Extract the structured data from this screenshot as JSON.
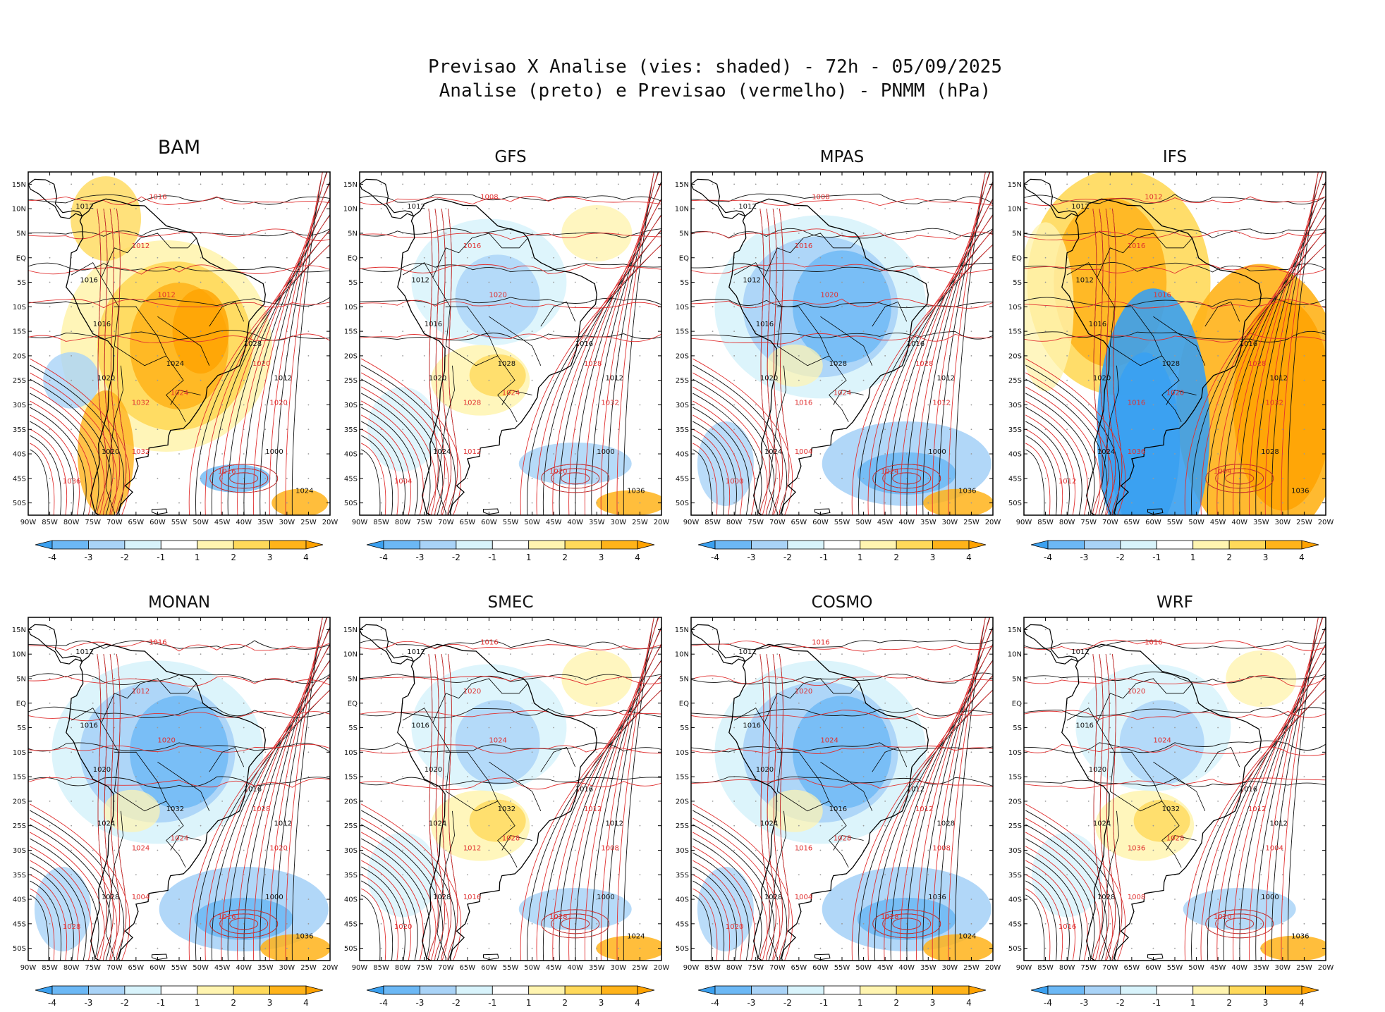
{
  "title": {
    "line1": "Previsao X Analise (vies: shaded) - 72h - 05/09/2025",
    "line2": "Analise (preto) e Previsao (vermelho) - PNMM (hPa)"
  },
  "lat_ticks": [
    "15N",
    "10N",
    "5N",
    "EQ",
    "5S",
    "10S",
    "15S",
    "20S",
    "25S",
    "30S",
    "35S",
    "40S",
    "45S",
    "50S"
  ],
  "lon_ticks": [
    "90W",
    "85W",
    "80W",
    "75W",
    "70W",
    "65W",
    "60W",
    "55W",
    "50W",
    "45W",
    "40W",
    "35W",
    "30W",
    "25W",
    "20W"
  ],
  "colorbar": {
    "labels": [
      "-4",
      "-3",
      "-2",
      "-1",
      "1",
      "2",
      "3",
      "4"
    ],
    "colors": [
      "#3aa0f0",
      "#6cb8f5",
      "#a9d3f7",
      "#d8f3fb",
      "#ffffff",
      "#fff4b0",
      "#ffd95a",
      "#ffb31a",
      "#ffa200"
    ]
  },
  "colors": {
    "analysis_isobar": "#111111",
    "forecast_isobar": "#e03030",
    "grid_dot": "#999999",
    "neg_bias": "#4aa8f2",
    "pos_bias": "#ffb020"
  },
  "panels": [
    {
      "name": "BAM",
      "bias": "pos",
      "labels_black": [
        "1012",
        "1016",
        "1016",
        "1020",
        "1020",
        "1024",
        "1028",
        "1012",
        "1000",
        "1024"
      ],
      "labels_red": [
        "1016",
        "1012",
        "1012",
        "1024",
        "1020",
        "1020",
        "1032",
        "1036",
        "1016",
        "1032"
      ]
    },
    {
      "name": "GFS",
      "bias": "mixed",
      "labels_black": [
        "1012",
        "1012",
        "1016",
        "1020",
        "1024",
        "1028",
        "1016",
        "1012",
        "1000",
        "1036"
      ],
      "labels_red": [
        "1008",
        "1016",
        "1020",
        "1024",
        "1028",
        "1032",
        "1012",
        "1004",
        "1020",
        "1028"
      ]
    },
    {
      "name": "MPAS",
      "bias": "neg",
      "labels_black": [
        "1012",
        "1012",
        "1016",
        "1020",
        "1024",
        "1028",
        "1016",
        "1012",
        "1000",
        "1036"
      ],
      "labels_red": [
        "1008",
        "1016",
        "1020",
        "1024",
        "1028",
        "1012",
        "1004",
        "1000",
        "1024",
        "1016"
      ]
    },
    {
      "name": "IFS",
      "bias": "split",
      "labels_black": [
        "1012",
        "1012",
        "1016",
        "1020",
        "1024",
        "1028",
        "1016",
        "1012",
        "1028",
        "1036"
      ],
      "labels_red": [
        "1012",
        "1016",
        "1016",
        "1020",
        "1028",
        "1032",
        "1036",
        "1012",
        "1004",
        "1016"
      ]
    },
    {
      "name": "MONAN",
      "bias": "neg",
      "labels_black": [
        "1012",
        "1016",
        "1020",
        "1024",
        "1028",
        "1032",
        "1016",
        "1012",
        "1000",
        "1036"
      ],
      "labels_red": [
        "1016",
        "1012",
        "1020",
        "1024",
        "1028",
        "1020",
        "1004",
        "1028",
        "1016",
        "1024"
      ]
    },
    {
      "name": "SMEC",
      "bias": "mixed",
      "labels_black": [
        "1012",
        "1016",
        "1020",
        "1024",
        "1028",
        "1032",
        "1016",
        "1012",
        "1000",
        "1024"
      ],
      "labels_red": [
        "1016",
        "1020",
        "1024",
        "1028",
        "1012",
        "1008",
        "1016",
        "1020",
        "1028",
        "1012"
      ]
    },
    {
      "name": "COSMO",
      "bias": "neg",
      "labels_black": [
        "1012",
        "1016",
        "1020",
        "1024",
        "1028",
        "1016",
        "1012",
        "1028",
        "1036",
        "1024"
      ],
      "labels_red": [
        "1016",
        "1020",
        "1024",
        "1028",
        "1012",
        "1008",
        "1004",
        "1020",
        "1028",
        "1016"
      ]
    },
    {
      "name": "WRF",
      "bias": "mixed",
      "labels_black": [
        "1012",
        "1016",
        "1020",
        "1024",
        "1028",
        "1032",
        "1016",
        "1012",
        "1000",
        "1036"
      ],
      "labels_red": [
        "1016",
        "1020",
        "1024",
        "1028",
        "1012",
        "1004",
        "1008",
        "1016",
        "1020",
        "1036"
      ]
    }
  ]
}
